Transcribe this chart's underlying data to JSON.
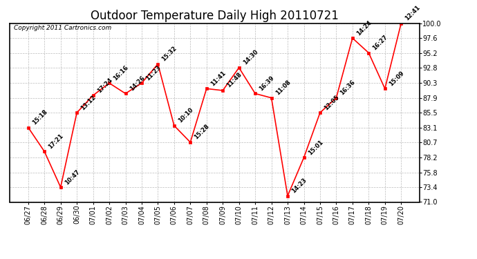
{
  "title": "Outdoor Temperature Daily High 20110721",
  "copyright_text": "Copyright 2011 Cartronics.com",
  "dates": [
    "06/27",
    "06/28",
    "06/29",
    "06/30",
    "07/01",
    "07/02",
    "07/03",
    "07/04",
    "07/05",
    "07/06",
    "07/07",
    "07/08",
    "07/09",
    "07/10",
    "07/11",
    "07/12",
    "07/13",
    "07/14",
    "07/15",
    "07/16",
    "07/17",
    "07/18",
    "07/19",
    "07/20"
  ],
  "temps": [
    83.1,
    79.2,
    73.4,
    85.5,
    88.3,
    90.3,
    88.6,
    90.3,
    93.4,
    83.4,
    80.7,
    89.4,
    89.1,
    92.8,
    88.6,
    87.9,
    72.0,
    78.2,
    85.5,
    87.9,
    97.6,
    95.2,
    89.4,
    100.0
  ],
  "annotations": [
    "15:18",
    "17:21",
    "10:47",
    "13:12",
    "17:24",
    "16:16",
    "14:26",
    "11:23",
    "15:32",
    "10:10",
    "15:28",
    "11:41",
    "11:48",
    "14:30",
    "16:39",
    "11:08",
    "14:23",
    "15:01",
    "12:05",
    "16:36",
    "14:24",
    "16:27",
    "15:09",
    "12:41"
  ],
  "ylim": [
    71.0,
    100.0
  ],
  "yticks": [
    71.0,
    73.4,
    75.8,
    78.2,
    80.7,
    83.1,
    85.5,
    87.9,
    90.3,
    92.8,
    95.2,
    97.6,
    100.0
  ],
  "line_color": "red",
  "marker_color": "red",
  "grid_color": "#bbbbbb",
  "bg_color": "#ffffff",
  "plot_bg_color": "#ffffff",
  "title_fontsize": 12,
  "annotation_fontsize": 6,
  "tick_fontsize": 7,
  "copyright_fontsize": 6.5
}
